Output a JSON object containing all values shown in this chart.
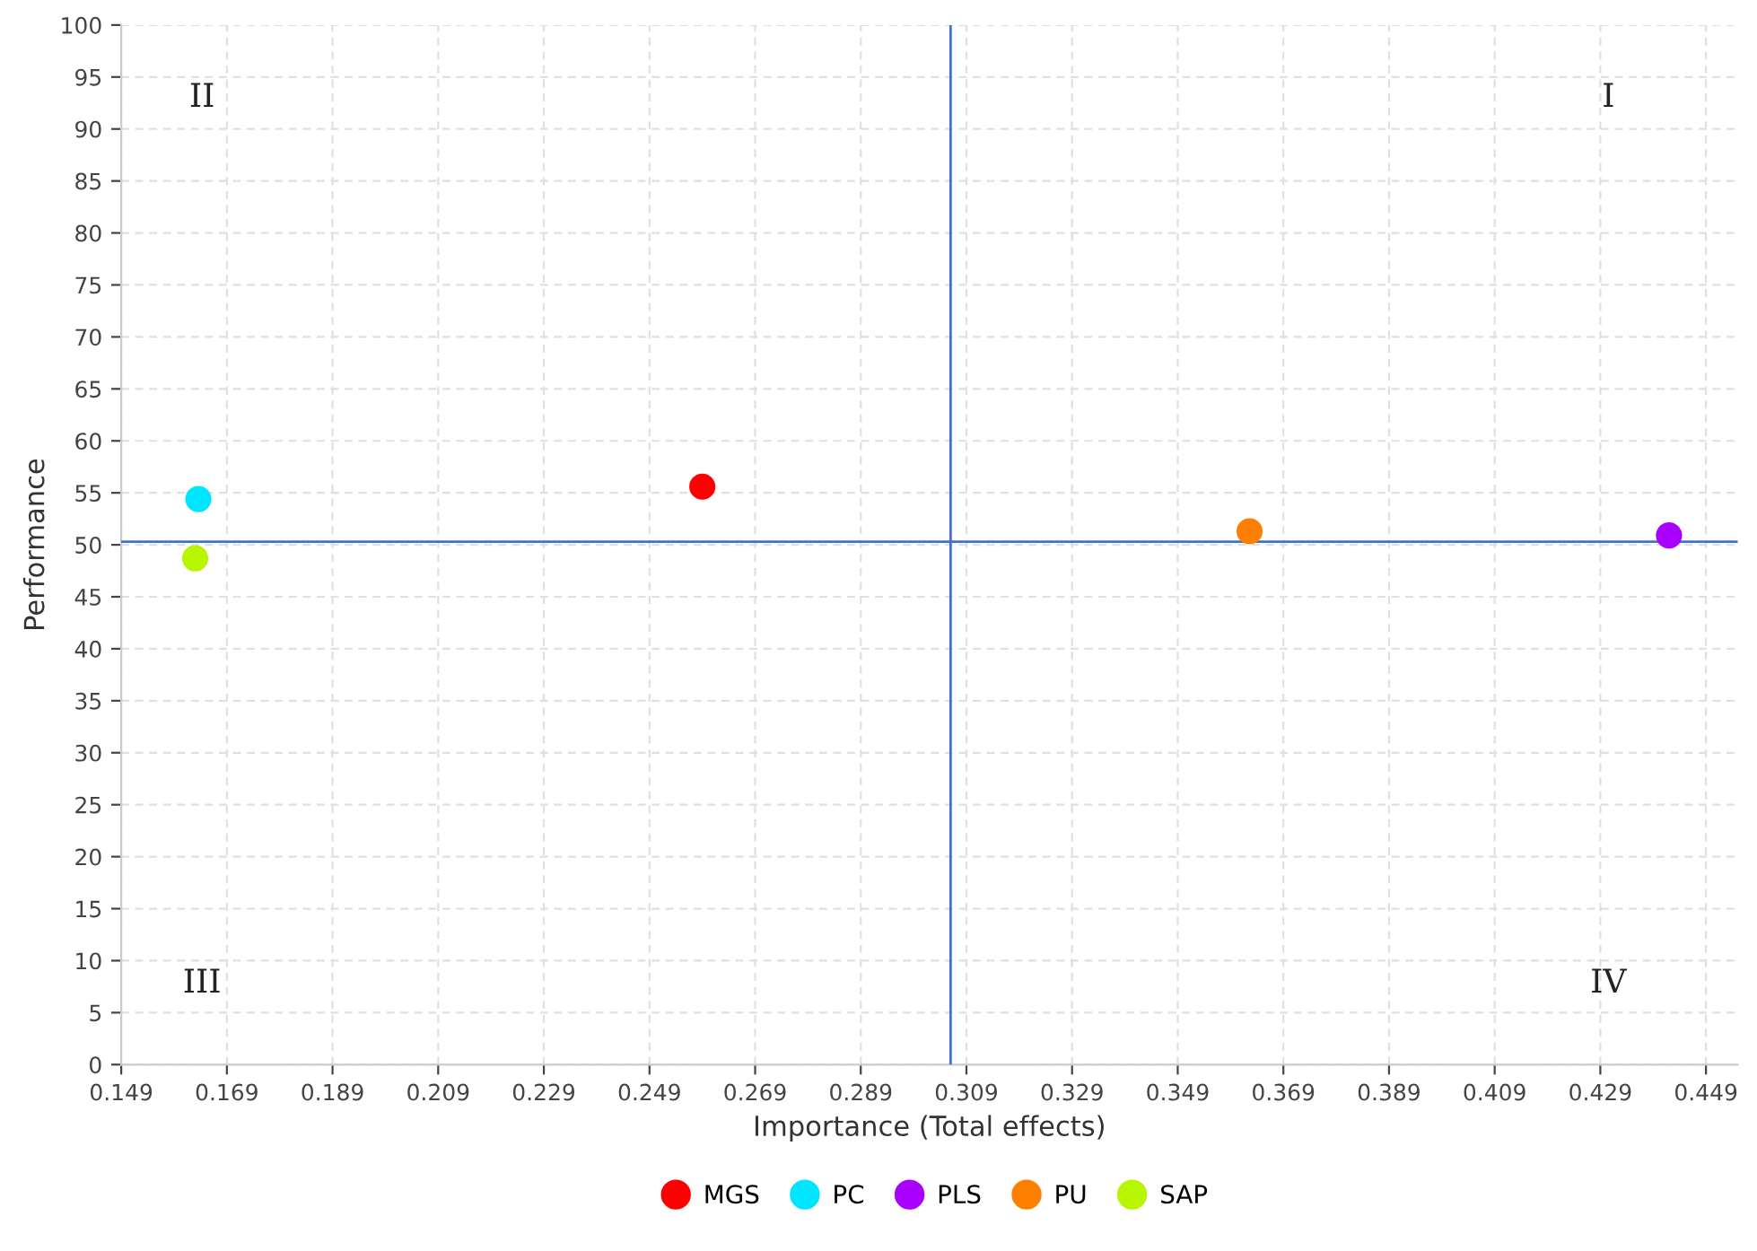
{
  "chart_data": {
    "type": "scatter",
    "xlabel": "Importance (Total effects)",
    "ylabel": "Performance",
    "xlim": [
      0.149,
      0.455
    ],
    "xticks": [
      0.149,
      0.169,
      0.189,
      0.209,
      0.229,
      0.249,
      0.269,
      0.289,
      0.309,
      0.329,
      0.349,
      0.369,
      0.389,
      0.409,
      0.429,
      0.449
    ],
    "ylim": [
      0,
      100
    ],
    "yticks": [
      0,
      5,
      10,
      15,
      20,
      25,
      30,
      35,
      40,
      45,
      50,
      55,
      60,
      65,
      70,
      75,
      80,
      85,
      90,
      95,
      100
    ],
    "grid": true,
    "legend": "bottom",
    "marker": "circle",
    "series": [
      {
        "name": "MGS",
        "color": "#ff0000",
        "x": [
          0.259
        ],
        "values": [
          55.6
        ]
      },
      {
        "name": "PC",
        "color": "#00e5ff",
        "x": [
          0.1636
        ],
        "values": [
          54.4
        ]
      },
      {
        "name": "PLS",
        "color": "#aa00ff",
        "x": [
          0.442
        ],
        "values": [
          50.9
        ]
      },
      {
        "name": "PU",
        "color": "#ff7f00",
        "x": [
          0.3626
        ],
        "values": [
          51.3
        ]
      },
      {
        "name": "SAP",
        "color": "#b8f500",
        "x": [
          0.163
        ],
        "values": [
          48.7
        ]
      }
    ],
    "ref_lines": [
      {
        "axis": "x",
        "value": 0.306,
        "color": "#4472c4"
      },
      {
        "axis": "y",
        "value": 50.3,
        "color": "#4472c4"
      }
    ],
    "annotations": [
      "II",
      "I",
      "III",
      "IV"
    ]
  }
}
